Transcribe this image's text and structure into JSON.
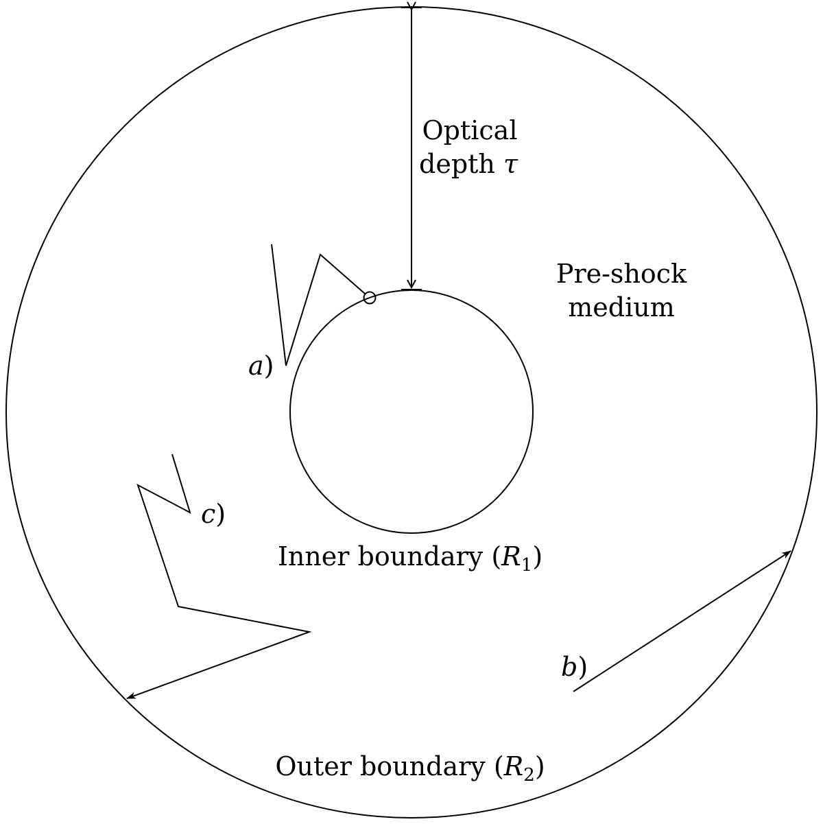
{
  "diagram": {
    "outer_label": {
      "text": "Outer boundary (",
      "symbol": "R",
      "subscript": "2",
      "close": ")"
    },
    "inner_label": {
      "text": "Inner boundary (",
      "symbol": "R",
      "subscript": "1",
      "close": ")"
    },
    "depth_label": {
      "line1": "Optical",
      "line2_text": "depth ",
      "line2_symbol": "τ"
    },
    "medium_label": {
      "line1": "Pre-shock",
      "line2": "medium"
    },
    "paths": [
      {
        "id": "a",
        "label": "a",
        "close": ")"
      },
      {
        "id": "b",
        "label": "b",
        "close": ")"
      },
      {
        "id": "c",
        "label": "c",
        "close": ")"
      }
    ]
  }
}
